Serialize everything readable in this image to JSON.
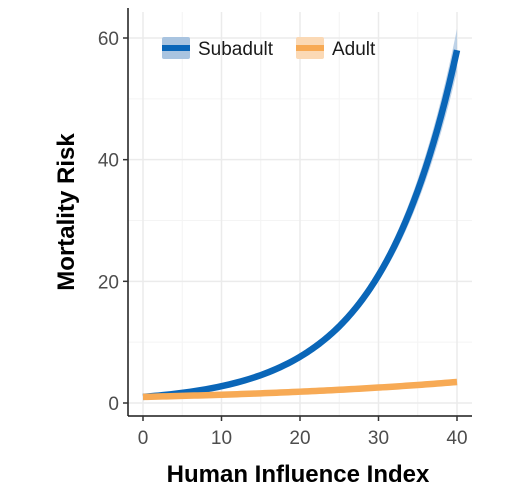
{
  "chart_data": {
    "type": "line",
    "title": "",
    "xlabel": "Human Influence Index",
    "ylabel": "Mortality Risk",
    "xlim": [
      0,
      40
    ],
    "ylim": [
      0,
      60
    ],
    "xticks": [
      0,
      10,
      20,
      30,
      40
    ],
    "yticks": [
      0,
      20,
      40,
      60
    ],
    "grid": true,
    "legend_position": "top-left",
    "x": [
      0,
      5,
      10,
      15,
      20,
      25,
      30,
      35,
      40
    ],
    "series": [
      {
        "name": "Subadult",
        "color": "#0a66b8",
        "band_color": "#a9c4e0",
        "values": [
          1.0,
          1.66,
          2.76,
          4.58,
          7.6,
          12.6,
          21.0,
          34.9,
          58.0
        ],
        "lower": [
          0.9,
          1.55,
          2.6,
          4.35,
          7.25,
          12.0,
          20.0,
          33.0,
          54.5
        ],
        "upper": [
          1.1,
          1.77,
          2.92,
          4.8,
          7.95,
          13.2,
          22.0,
          36.8,
          61.5
        ]
      },
      {
        "name": "Adult",
        "color": "#f7aa55",
        "band_color": "#fbd9b5",
        "values": [
          1.0,
          1.17,
          1.36,
          1.59,
          1.86,
          2.17,
          2.54,
          2.96,
          3.46
        ],
        "lower": [
          0.9,
          1.05,
          1.23,
          1.44,
          1.68,
          1.95,
          2.25,
          2.58,
          2.95
        ],
        "upper": [
          1.1,
          1.29,
          1.5,
          1.74,
          2.04,
          2.39,
          2.83,
          3.34,
          3.97
        ]
      }
    ]
  }
}
